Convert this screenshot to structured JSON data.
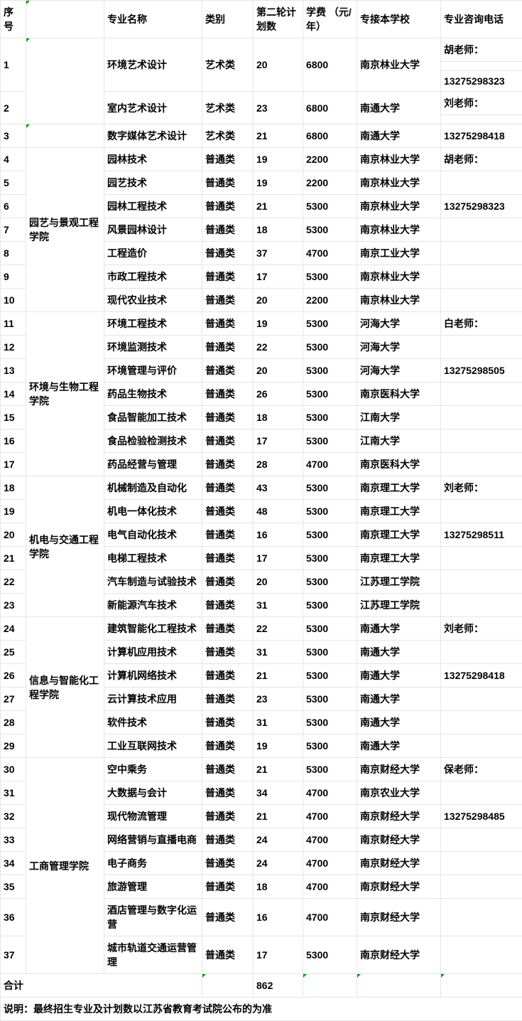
{
  "headers": {
    "seq": "序号",
    "dept": "",
    "major": "专业名称",
    "category": "类别",
    "plan": "第二轮计划数",
    "fee": "学费 （元/年）",
    "school": "专接本学校",
    "phone": "专业咨询电话"
  },
  "rows": [
    {
      "seq": "1",
      "dept": "",
      "major": "环境艺术设计",
      "cat": "艺术类",
      "plan": "20",
      "fee": "6800",
      "school": "南京林业大学",
      "phone_top": "胡老师：",
      "phone_bot": "13275298323",
      "seq_rowspan": 3,
      "dept_rowspan": 5,
      "major_rowspan": 3,
      "cat_rowspan": 3,
      "plan_rowspan": 3,
      "fee_rowspan": 3,
      "school_rowspan": 3,
      "dept_tri": true
    },
    {
      "seq": "2",
      "major": "室内艺术设计",
      "cat": "艺术类",
      "plan": "23",
      "fee": "6800",
      "school": "南通大学",
      "phone_top": "刘老师：",
      "seq_rowspan": 2,
      "major_rowspan": 2,
      "cat_rowspan": 2,
      "plan_rowspan": 2,
      "fee_rowspan": 2,
      "school_rowspan": 2
    },
    {
      "seq": "3",
      "dept": "",
      "major": "数字媒体艺术设计",
      "cat": "艺术类",
      "plan": "21",
      "fee": "6800",
      "school": "南通大学",
      "phone": "13275298418",
      "dept_tri": true
    },
    {
      "seq": "4",
      "dept": "园艺与景观工程学院",
      "major": "园林技术",
      "cat": "普通类",
      "plan": "19",
      "fee": "2200",
      "school": "南京林业大学",
      "phone": "胡老师：",
      "dept_rowspan": 7
    },
    {
      "seq": "5",
      "major": "园艺技术",
      "cat": "普通类",
      "plan": "19",
      "fee": "2200",
      "school": "南京林业大学",
      "phone": ""
    },
    {
      "seq": "6",
      "major": "园林工程技术",
      "cat": "普通类",
      "plan": "21",
      "fee": "5300",
      "school": "南京林业大学",
      "phone": "13275298323"
    },
    {
      "seq": "7",
      "major": "风景园林设计",
      "cat": "普通类",
      "plan": "18",
      "fee": "5300",
      "school": "南京林业大学",
      "phone": ""
    },
    {
      "seq": "8",
      "major": "工程造价",
      "cat": "普通类",
      "plan": "37",
      "fee": "4700",
      "school": "南京工业大学",
      "phone": ""
    },
    {
      "seq": "9",
      "major": "市政工程技术",
      "cat": "普通类",
      "plan": "17",
      "fee": "5300",
      "school": "南京林业大学",
      "phone": ""
    },
    {
      "seq": "10",
      "major": "现代农业技术",
      "cat": "普通类",
      "plan": "20",
      "fee": "2200",
      "school": "南京林业大学",
      "phone": ""
    },
    {
      "seq": "11",
      "dept": "环境与生物工程学院",
      "major": "环境工程技术",
      "cat": "普通类",
      "plan": "19",
      "fee": "5300",
      "school": "河海大学",
      "phone": "白老师：",
      "dept_rowspan": 7
    },
    {
      "seq": "12",
      "major": "环境监测技术",
      "cat": "普通类",
      "plan": "22",
      "fee": "5300",
      "school": "河海大学",
      "phone": ""
    },
    {
      "seq": "13",
      "major": "环境管理与评价",
      "cat": "普通类",
      "plan": "20",
      "fee": "5300",
      "school": "河海大学",
      "phone": "13275298505"
    },
    {
      "seq": "14",
      "major": "药品生物技术",
      "cat": "普通类",
      "plan": "26",
      "fee": "5300",
      "school": "南京医科大学",
      "phone": ""
    },
    {
      "seq": "15",
      "major": "食品智能加工技术",
      "cat": "普通类",
      "plan": "18",
      "fee": "5300",
      "school": "江南大学",
      "phone": ""
    },
    {
      "seq": "16",
      "major": "食品检验检测技术",
      "cat": "普通类",
      "plan": "17",
      "fee": "5300",
      "school": "江南大学",
      "phone": ""
    },
    {
      "seq": "17",
      "major": "药品经营与管理",
      "cat": "普通类",
      "plan": "28",
      "fee": "4700",
      "school": "南京医科大学",
      "phone": ""
    },
    {
      "seq": "18",
      "dept": "机电与交通工程学院",
      "major": "机械制造及自动化",
      "cat": "普通类",
      "plan": "43",
      "fee": "5300",
      "school": "南京理工大学",
      "phone": "刘老师：",
      "dept_rowspan": 6
    },
    {
      "seq": "19",
      "major": "机电一体化技术",
      "cat": "普通类",
      "plan": "48",
      "fee": "5300",
      "school": "南京理工大学",
      "phone": ""
    },
    {
      "seq": "20",
      "major": "电气自动化技术",
      "cat": "普通类",
      "plan": "16",
      "fee": "5300",
      "school": "南京理工大学",
      "phone": "13275298511"
    },
    {
      "seq": "21",
      "major": "电梯工程技术",
      "cat": "普通类",
      "plan": "17",
      "fee": "5300",
      "school": "南京理工大学",
      "phone": ""
    },
    {
      "seq": "22",
      "major": "汽车制造与试验技术",
      "cat": "普通类",
      "plan": "20",
      "fee": "5300",
      "school": "江苏理工学院",
      "phone": ""
    },
    {
      "seq": "23",
      "major": "新能源汽车技术",
      "cat": "普通类",
      "plan": "31",
      "fee": "5300",
      "school": "江苏理工学院",
      "phone": ""
    },
    {
      "seq": "24",
      "dept": "信息与智能化工程学院",
      "major": "建筑智能化工程技术",
      "cat": "普通类",
      "plan": "22",
      "fee": "5300",
      "school": "南通大学",
      "phone": "刘老师：",
      "dept_rowspan": 6
    },
    {
      "seq": "25",
      "major": "计算机应用技术",
      "cat": "普通类",
      "plan": "31",
      "fee": "5300",
      "school": "南通大学",
      "phone": ""
    },
    {
      "seq": "26",
      "major": "计算机网络技术",
      "cat": "普通类",
      "plan": "21",
      "fee": "5300",
      "school": "南通大学",
      "phone": "13275298418"
    },
    {
      "seq": "27",
      "major": "云计算技术应用",
      "cat": "普通类",
      "plan": "23",
      "fee": "5300",
      "school": "南通大学",
      "phone": ""
    },
    {
      "seq": "28",
      "major": "软件技术",
      "cat": "普通类",
      "plan": "31",
      "fee": "5300",
      "school": "南通大学",
      "phone": ""
    },
    {
      "seq": "29",
      "major": "工业互联网技术",
      "cat": "普通类",
      "plan": "19",
      "fee": "5300",
      "school": "南通大学",
      "phone": ""
    },
    {
      "seq": "30",
      "dept": "工商管理学院",
      "major": "空中乘务",
      "cat": "普通类",
      "plan": "21",
      "fee": "5300",
      "school": "南京财经大学",
      "phone": "保老师：",
      "dept_rowspan": 8
    },
    {
      "seq": "31",
      "major": "大数据与会计",
      "cat": "普通类",
      "plan": "34",
      "fee": "4700",
      "school": "南京农业大学",
      "phone": ""
    },
    {
      "seq": "32",
      "major": "现代物流管理",
      "cat": "普通类",
      "plan": "21",
      "fee": "4700",
      "school": "南京财经大学",
      "phone": "13275298485"
    },
    {
      "seq": "33",
      "major": "网络营销与直播电商",
      "cat": "普通类",
      "plan": "24",
      "fee": "4700",
      "school": "南京财经大学",
      "phone": ""
    },
    {
      "seq": "34",
      "major": "电子商务",
      "cat": "普通类",
      "plan": "24",
      "fee": "4700",
      "school": "南京财经大学",
      "phone": ""
    },
    {
      "seq": "35",
      "major": "旅游管理",
      "cat": "普通类",
      "plan": "18",
      "fee": "4700",
      "school": "南京财经大学",
      "phone": ""
    },
    {
      "seq": "36",
      "major": "酒店管理与数字化运营",
      "cat": "普通类",
      "plan": "16",
      "fee": "4700",
      "school": "南京财经大学",
      "phone": ""
    },
    {
      "seq": "37",
      "major": "城市轨道交通运营管理",
      "cat": "普通类",
      "plan": "17",
      "fee": "5300",
      "school": "南京财经大学",
      "phone": ""
    }
  ],
  "total": {
    "label": "合计",
    "plan": "862"
  },
  "note": "说明：最终招生专业及计划数以江苏省教育考试院公布的为准"
}
